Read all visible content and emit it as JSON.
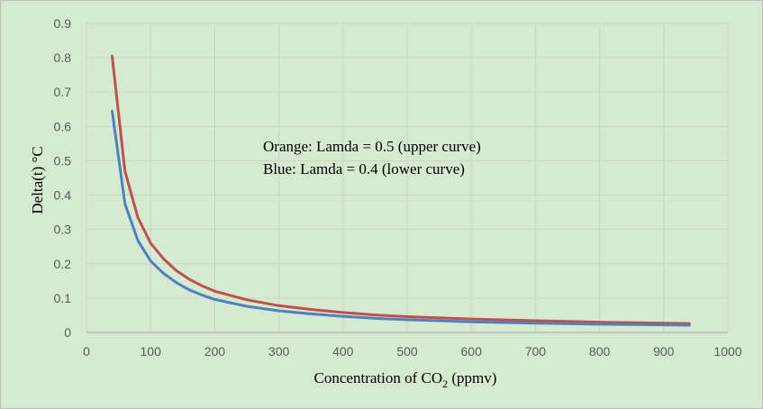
{
  "chart_data": {
    "type": "line",
    "title": "",
    "xlabel": "Concentration of CO₂ (ppmv)",
    "xlabel_main": "Concentration of CO",
    "xlabel_sub": "2",
    "xlabel_tail": " (ppmv)",
    "ylabel": "Delta(t) °C",
    "xlim": [
      0,
      1000
    ],
    "ylim": [
      0,
      0.9
    ],
    "xticks": [
      "0",
      "100",
      "200",
      "300",
      "400",
      "500",
      "600",
      "700",
      "800",
      "900",
      "1000"
    ],
    "yticks": [
      "0",
      "0.1",
      "0.2",
      "0.3",
      "0.4",
      "0.5",
      "0.6",
      "0.7",
      "0.8",
      "0.9"
    ],
    "grid": true,
    "annotations": [
      "Orange: Lamda = 0.5 (upper curve)",
      "Blue: Lamda = 0.4 (lower curve)"
    ],
    "series": [
      {
        "color": "#c0504d",
        "x": [
          40,
          60,
          80,
          100,
          120,
          140,
          160,
          180,
          200,
          250,
          300,
          350,
          400,
          450,
          500,
          600,
          700,
          800,
          940
        ],
        "y": [
          0.805,
          0.47,
          0.335,
          0.26,
          0.215,
          0.18,
          0.155,
          0.136,
          0.12,
          0.095,
          0.078,
          0.067,
          0.058,
          0.051,
          0.046,
          0.039,
          0.034,
          0.03,
          0.026
        ]
      },
      {
        "color": "#4f81bd",
        "x": [
          40,
          60,
          80,
          100,
          120,
          140,
          160,
          180,
          200,
          250,
          300,
          350,
          400,
          450,
          500,
          600,
          700,
          800,
          940
        ],
        "y": [
          0.645,
          0.375,
          0.268,
          0.208,
          0.172,
          0.145,
          0.124,
          0.109,
          0.096,
          0.076,
          0.063,
          0.054,
          0.047,
          0.041,
          0.037,
          0.031,
          0.027,
          0.024,
          0.021
        ]
      }
    ]
  }
}
